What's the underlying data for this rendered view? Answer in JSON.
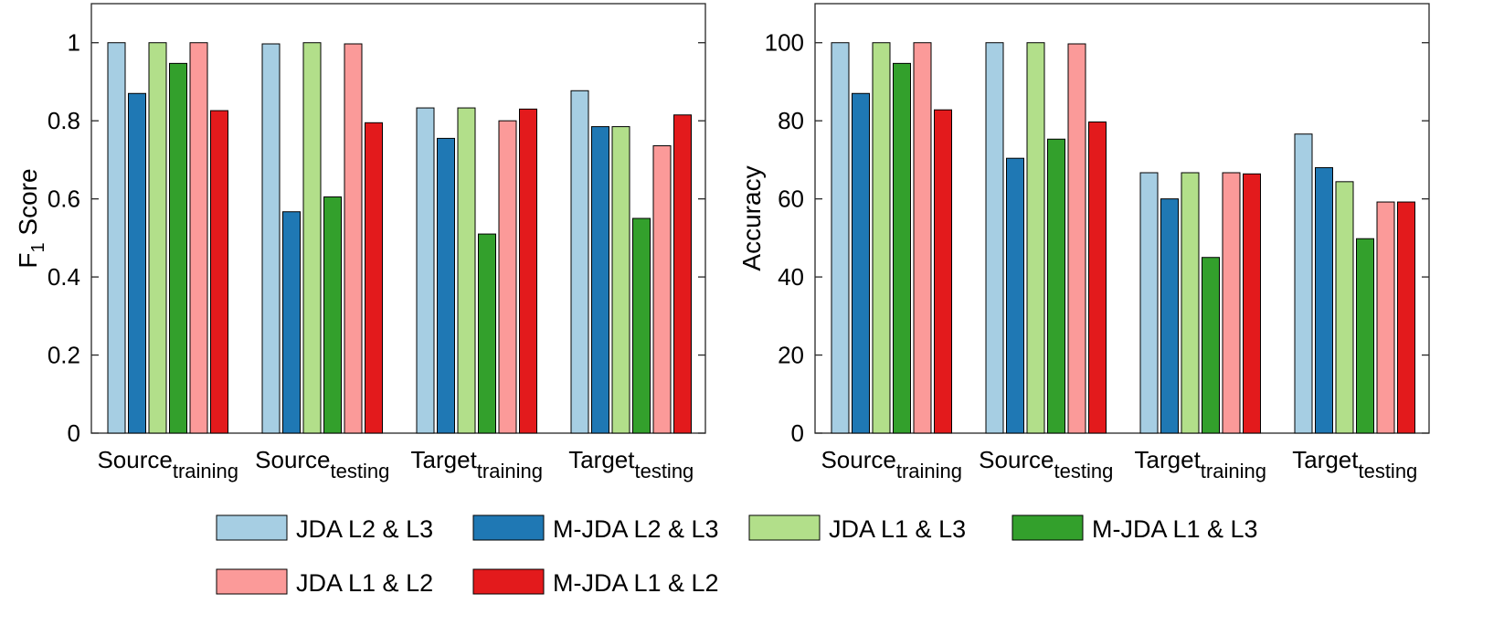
{
  "colors": {
    "JDA L2 & L3": "#a6cee3",
    "M-JDA L2 & L3": "#1f78b4",
    "JDA L1 & L3": "#b2df8a",
    "M-JDA L1 & L3": "#33a02c",
    "JDA L1 & L2": "#fb9a99",
    "M-JDA L1 & L2": "#e31a1c"
  },
  "legend": {
    "items": [
      "JDA L2 & L3",
      "M-JDA L2 & L3",
      "JDA L1 & L3",
      "M-JDA L1 & L3",
      "JDA L1 & L2",
      "M-JDA L1 & L2"
    ]
  },
  "chart_data": [
    {
      "type": "bar",
      "title": "",
      "xlabel": "",
      "ylabel": "F1 Score",
      "ylabel_main": "F",
      "ylabel_sub": "1",
      "ylabel_rest": " Score",
      "ylim": [
        0,
        1.1
      ],
      "yticks": [
        0,
        0.2,
        0.4,
        0.6,
        0.8,
        1
      ],
      "ytick_labels": [
        "0",
        "0.2",
        "0.4",
        "0.6",
        "0.8",
        "1"
      ],
      "categories": [
        {
          "main": "Source",
          "sub": "training"
        },
        {
          "main": "Source",
          "sub": "testing"
        },
        {
          "main": "Target",
          "sub": "training"
        },
        {
          "main": "Target",
          "sub": "testing"
        }
      ],
      "series": [
        {
          "name": "JDA L2 & L3",
          "values": [
            1.0,
            0.997,
            0.833,
            0.877
          ]
        },
        {
          "name": "M-JDA L2 & L3",
          "values": [
            0.87,
            0.567,
            0.755,
            0.785
          ]
        },
        {
          "name": "JDA L1 & L3",
          "values": [
            1.0,
            1.0,
            0.833,
            0.785
          ]
        },
        {
          "name": "M-JDA L1 & L3",
          "values": [
            0.947,
            0.605,
            0.51,
            0.55
          ]
        },
        {
          "name": "JDA L1 & L2",
          "values": [
            1.0,
            0.997,
            0.8,
            0.736
          ]
        },
        {
          "name": "M-JDA L1 & L2",
          "values": [
            0.826,
            0.795,
            0.83,
            0.815
          ]
        }
      ],
      "grid": false,
      "legend_position": "bottom"
    },
    {
      "type": "bar",
      "title": "",
      "xlabel": "",
      "ylabel": "Accuracy",
      "ylabel_main": "Accuracy",
      "ylabel_sub": "",
      "ylabel_rest": "",
      "ylim": [
        0,
        110
      ],
      "yticks": [
        0,
        20,
        40,
        60,
        80,
        100
      ],
      "ytick_labels": [
        "0",
        "20",
        "40",
        "60",
        "80",
        "100"
      ],
      "categories": [
        {
          "main": "Source",
          "sub": "training"
        },
        {
          "main": "Source",
          "sub": "testing"
        },
        {
          "main": "Target",
          "sub": "training"
        },
        {
          "main": "Target",
          "sub": "testing"
        }
      ],
      "series": [
        {
          "name": "JDA L2 & L3",
          "values": [
            100,
            100,
            66.7,
            76.6
          ]
        },
        {
          "name": "M-JDA L2 & L3",
          "values": [
            87,
            70.4,
            60,
            68
          ]
        },
        {
          "name": "JDA L1 & L3",
          "values": [
            100,
            100,
            66.7,
            64.4
          ]
        },
        {
          "name": "M-JDA L1 & L3",
          "values": [
            94.7,
            75.3,
            45,
            49.8
          ]
        },
        {
          "name": "JDA L1 & L2",
          "values": [
            100,
            99.7,
            66.7,
            59.2
          ]
        },
        {
          "name": "M-JDA L1 & L2",
          "values": [
            82.8,
            79.7,
            66.4,
            59.2
          ]
        }
      ],
      "grid": false,
      "legend_position": "bottom"
    }
  ]
}
